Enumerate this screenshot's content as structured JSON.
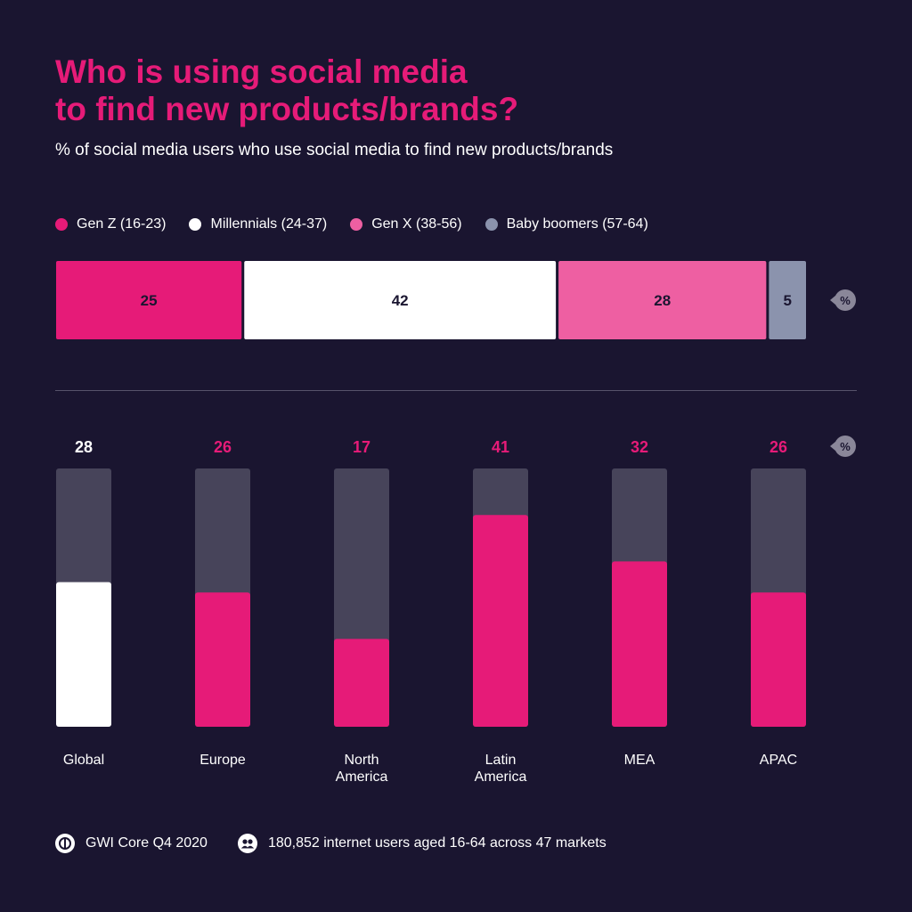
{
  "title_line1": "Who is using social media",
  "title_line2": "to find new products/brands?",
  "subtitle": "% of social media users who use social media to find new products/brands",
  "unit_badge": "%",
  "colors": {
    "background": "#1a1530",
    "gen_z": "#e61b78",
    "millennials": "#ffffff",
    "gen_x": "#ee5fa2",
    "baby_boomers": "#8b93ad",
    "track": "#47445a",
    "global": "#ffffff",
    "region": "#e61b78"
  },
  "chart_data": [
    {
      "type": "bar",
      "orientation": "horizontal-stacked",
      "categories": [
        "Gen Z (16-23)",
        "Millennials (24-37)",
        "Gen X (38-56)",
        "Baby boomers (57-64)"
      ],
      "values": [
        25,
        42,
        28,
        5
      ],
      "unit": "%",
      "legend_position": "top-left"
    },
    {
      "type": "bar",
      "categories": [
        "Global",
        "Europe",
        "North America",
        "Latin America",
        "MEA",
        "APAC"
      ],
      "values": [
        28,
        26,
        17,
        41,
        32,
        26
      ],
      "unit": "%",
      "ylim": [
        0,
        50
      ]
    }
  ],
  "footer": {
    "source": "GWI Core Q4 2020",
    "sample": "180,852 internet users aged 16-64 across 47 markets"
  }
}
